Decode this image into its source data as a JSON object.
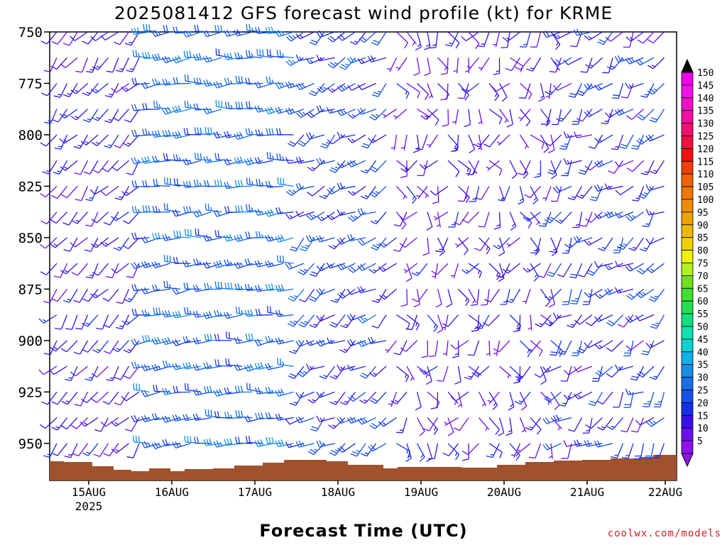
{
  "chart_data": {
    "type": "heatmap",
    "title": "2025081412 GFS forecast wind profile (kt) for KRME",
    "xlabel": "Forecast Time (UTC)",
    "credit": "coolwx.com/models",
    "y_axis": {
      "ticks": [
        750,
        775,
        800,
        825,
        850,
        875,
        900,
        925,
        950
      ],
      "range": [
        750,
        968
      ],
      "inverted": true
    },
    "x_axis": {
      "ticks": [
        {
          "label": "15AUG",
          "sub": "2025"
        },
        {
          "label": "16AUG",
          "sub": ""
        },
        {
          "label": "17AUG",
          "sub": ""
        },
        {
          "label": "18AUG",
          "sub": ""
        },
        {
          "label": "19AUG",
          "sub": ""
        },
        {
          "label": "20AUG",
          "sub": ""
        },
        {
          "label": "21AUG",
          "sub": ""
        },
        {
          "label": "22AUG",
          "sub": ""
        }
      ]
    },
    "colorbar": {
      "values": [
        5,
        10,
        15,
        20,
        25,
        30,
        35,
        40,
        45,
        50,
        55,
        60,
        65,
        70,
        75,
        80,
        85,
        90,
        95,
        100,
        105,
        110,
        115,
        120,
        125,
        130,
        135,
        140,
        145,
        150
      ],
      "colors": [
        "#9010f0",
        "#6a10f0",
        "#3a10e8",
        "#1630e8",
        "#1450e8",
        "#1470e8",
        "#1490e8",
        "#10b0e8",
        "#10d0d0",
        "#10e0b0",
        "#10e080",
        "#20e050",
        "#40e030",
        "#70e020",
        "#b0f020",
        "#f0f000",
        "#f0d000",
        "#f0b800",
        "#f0a000",
        "#f08c00",
        "#f07800",
        "#f06400",
        "#f04000",
        "#f01010",
        "#f01040",
        "#f01070",
        "#f010a0",
        "#f010c8",
        "#f010e8",
        "#f000f0"
      ],
      "top_arrow_color": "#000000",
      "bottom_arrow_color": "#9010f0"
    },
    "terrain_color": "#a0522d"
  }
}
